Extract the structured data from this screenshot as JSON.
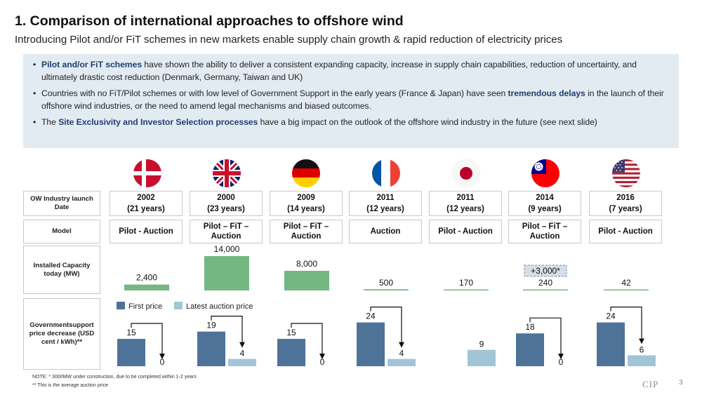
{
  "title": "1. Comparison of international approaches to offshore wind",
  "subtitle": "Introducing Pilot and/or FiT schemes in new markets enable supply chain growth & rapid reduction of electricity prices",
  "bullets": [
    {
      "hl1": "Pilot and/or FiT schemes",
      "t1": " have shown the ability to deliver a consistent expanding capacity, increase in supply chain capabilities, reduction of uncertainty, and ultimately drastic cost reduction (Denmark, Germany, Taiwan and UK)"
    },
    {
      "t1": "Countries with no FiT/Pilot schemes or with low level of Government Support in the early years (France & Japan) have seen ",
      "hl1": "tremendous delays",
      "t2": " in the launch of their offshore wind industries, or the need to amend legal mechanisms and biased outcomes."
    },
    {
      "t1": "The ",
      "hl1": "Site Exclusivity and Investor Selection processes",
      "t2": " have a big impact on the outlook of the offshore wind industry in the future (see next slide)"
    }
  ],
  "row_labels": {
    "launch": "OW Industry launch Date",
    "model": "Model",
    "capacity": "Installed Capacity today (MW)",
    "support": "Governmentsupport price decrease (USD cent / kWh)**"
  },
  "countries": [
    {
      "flag": "denmark-flag-icon",
      "year": "2002",
      "years_ago": "(21 years)",
      "model": "Pilot - Auction"
    },
    {
      "flag": "uk-flag-icon",
      "year": "2000",
      "years_ago": "(23 years)",
      "model": "Pilot – FiT – Auction"
    },
    {
      "flag": "germany-flag-icon",
      "year": "2009",
      "years_ago": "(14 years)",
      "model": "Pilot – FiT – Auction"
    },
    {
      "flag": "france-flag-icon",
      "year": "2011",
      "years_ago": "(12 years)",
      "model": "Auction"
    },
    {
      "flag": "japan-flag-icon",
      "year": "2011",
      "years_ago": "(12 years)",
      "model": "Pilot - Auction"
    },
    {
      "flag": "taiwan-flag-icon",
      "year": "2014",
      "years_ago": "(9 years)",
      "model": "Pilot – FiT – Auction"
    },
    {
      "flag": "usa-flag-icon",
      "year": "2016",
      "years_ago": "(7 years)",
      "model": "Pilot - Auction"
    }
  ],
  "colors": {
    "capacity": "#74b783",
    "first_price": "#4f7398",
    "latest_price": "#a2c5d6",
    "highlight": "#1f3f6e"
  },
  "chart_data": [
    {
      "type": "bar",
      "title": "Installed Capacity today (MW)",
      "categories": [
        "Denmark",
        "UK",
        "Germany",
        "France",
        "Japan",
        "Taiwan",
        "USA"
      ],
      "values": [
        2400,
        14000,
        8000,
        500,
        170,
        240,
        42
      ],
      "labels": [
        "2,400",
        "14,000",
        "8,000",
        "500",
        "170",
        "240",
        "42"
      ],
      "annotation": {
        "category": "Taiwan",
        "text": "+3,000*"
      }
    },
    {
      "type": "bar",
      "title": "Governmentsupport price decrease (USD cent / kWh)**",
      "categories": [
        "Denmark",
        "UK",
        "Germany",
        "France",
        "Japan",
        "Taiwan",
        "USA"
      ],
      "series": [
        {
          "name": "First price",
          "values": [
            15,
            19,
            15,
            24,
            null,
            18,
            24
          ]
        },
        {
          "name": "Latest auction price",
          "values": [
            0,
            4,
            0,
            4,
            9,
            0,
            6
          ]
        }
      ],
      "legend": "top-left"
    }
  ],
  "notes": {
    "note1": "NOTE:  * 3000MW under construction, due to be completed within 1-2 years",
    "note2": "** This is the average auction price"
  },
  "logo": "CIP",
  "page_number": "3"
}
